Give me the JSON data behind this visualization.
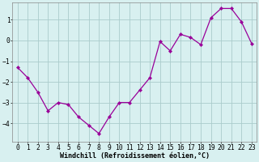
{
  "x": [
    0,
    1,
    2,
    3,
    4,
    5,
    6,
    7,
    8,
    9,
    10,
    11,
    12,
    13,
    14,
    15,
    16,
    17,
    18,
    19,
    20,
    21,
    22,
    23
  ],
  "y": [
    -1.3,
    -1.8,
    -2.5,
    -3.4,
    -3.0,
    -3.1,
    -3.7,
    -4.1,
    -4.5,
    -3.7,
    -3.0,
    -3.0,
    -2.4,
    -1.8,
    -0.05,
    -0.5,
    0.3,
    0.15,
    -0.2,
    1.1,
    1.55,
    1.55,
    0.9,
    -0.15
  ],
  "line_color": "#990099",
  "marker": "D",
  "markersize": 2.2,
  "linewidth": 0.9,
  "xlabel": "Windchill (Refroidissement éolien,°C)",
  "xlabel_fontsize": 6.0,
  "bg_color": "#d8f0f0",
  "grid_color": "#aacccc",
  "yticks": [
    -4,
    -3,
    -2,
    -1,
    0,
    1
  ],
  "ylim": [
    -4.9,
    1.85
  ],
  "xlim": [
    -0.5,
    23.5
  ],
  "tick_fontsize": 5.8,
  "figsize": [
    3.2,
    2.0
  ],
  "dpi": 100
}
